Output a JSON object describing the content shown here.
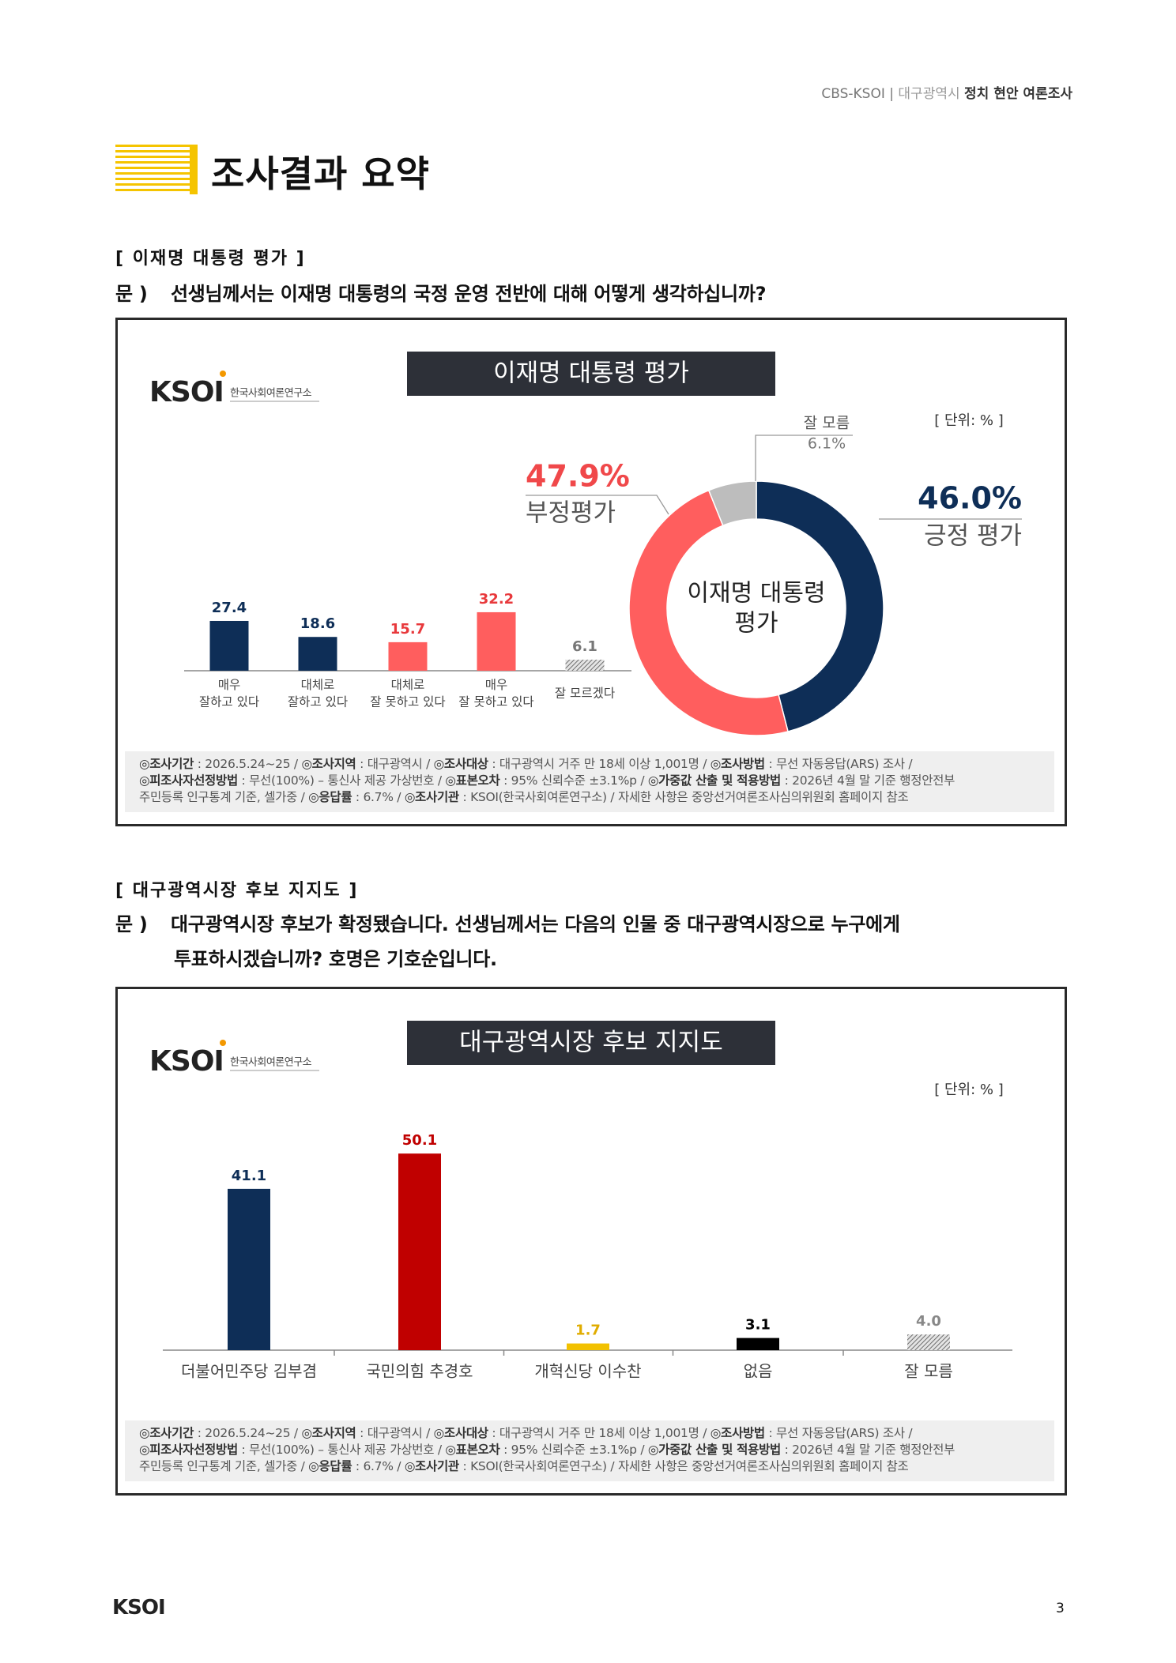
{
  "header": {
    "source": "CBS-KSOI",
    "separator": "|",
    "region": "대구광역시",
    "topic": "정치 현안 여론조사"
  },
  "page_title": "조사결과 요약",
  "logo": {
    "mark": "KSOI",
    "name": "한국사회여론연구소"
  },
  "sections": [
    {
      "label": "[ 이재명 대통령 평가 ]",
      "question_prefix": "문 )",
      "question_lines": [
        "선생님께서는 이재명 대통령의 국정 운영 전반에 대해 어떻게 생각하십니까?"
      ]
    },
    {
      "label": "[ 대구광역시장 후보 지지도 ]",
      "question_prefix": "문 )",
      "question_lines": [
        "대구광역시장 후보가 확정됐습니다. 선생님께서는 다음의 인물 중 대구광역시장으로 누구에게",
        "투표하시겠습니까? 호명은 기호순입니다."
      ]
    }
  ],
  "footnote": [
    [
      {
        "text": "◎조사기간",
        "bold": true
      },
      {
        "text": " : 2026.5.24~25 / ",
        "bold": false
      },
      {
        "text": "◎조사지역",
        "bold": true
      },
      {
        "text": " : 대구광역시 / ",
        "bold": false
      },
      {
        "text": "◎조사대상",
        "bold": true
      },
      {
        "text": " : 대구광역시 거주 만 18세 이상 1,001명 / ",
        "bold": false
      },
      {
        "text": "◎조사방법",
        "bold": true
      },
      {
        "text": " : 무선 자동응답(ARS) 조사 /",
        "bold": false
      }
    ],
    [
      {
        "text": "◎피조사자선정방법",
        "bold": true
      },
      {
        "text": " : 무선(100%) – 통신사 제공 가상번호 / ",
        "bold": false
      },
      {
        "text": "◎표본오차",
        "bold": true
      },
      {
        "text": " : 95% 신뢰수준 ±3.1%p / ",
        "bold": false
      },
      {
        "text": "◎가중값 산출 및 적용방법",
        "bold": true
      },
      {
        "text": " : 2026년 4월 말 기준 행정안전부",
        "bold": false
      }
    ],
    [
      {
        "text": "주민등록 인구통계 기준, 셀가중 / ",
        "bold": false
      },
      {
        "text": "◎응답률",
        "bold": true
      },
      {
        "text": " : 6.7% / ",
        "bold": false
      },
      {
        "text": "◎조사기관",
        "bold": true
      },
      {
        "text": " : KSOI(한국사회여론연구소) / 자세한 사항은 중앙선거여론조사심의위원회 홈페이지 참조",
        "bold": false
      }
    ]
  ],
  "chart_data": [
    {
      "type": "bar",
      "title": "이재명 대통령 평가",
      "unit": "[ 단위: % ]",
      "categories": [
        "매우\n잘하고 있다",
        "대체로\n잘하고 있다",
        "대체로\n잘 못하고 있다",
        "매우\n잘 못하고 있다",
        "잘 모르겠다"
      ],
      "values": [
        27.4,
        18.6,
        15.7,
        32.2,
        6.1
      ],
      "colors": [
        "#0e2e57",
        "#0e2e57",
        "#ff5e5e",
        "#ff5e5e",
        "#9a9a9a"
      ],
      "label_colors": [
        "#0e2e57",
        "#0e2e57",
        "#e8393c",
        "#e8393c",
        "#777777"
      ],
      "hatch": [
        false,
        false,
        false,
        false,
        true
      ],
      "ylim": [
        0,
        40
      ]
    },
    {
      "type": "pie",
      "donut": true,
      "center_label": [
        "이재명 대통령",
        "평가"
      ],
      "categories": [
        "긍정 평가",
        "부정평가",
        "잘 모름"
      ],
      "values": [
        46.0,
        47.9,
        6.1
      ],
      "value_labels": [
        "46.0%",
        "47.9%",
        "6.1%"
      ],
      "colors": [
        "#0e2e57",
        "#ff5e5e",
        "#bdbdbd"
      ],
      "label_colors": [
        "#0e2e57",
        "#f0484a",
        "#777777"
      ]
    },
    {
      "type": "bar",
      "title": "대구광역시장 후보 지지도",
      "unit": "[ 단위: % ]",
      "categories": [
        "더불어민주당 김부겸",
        "국민의힘 추경호",
        "개혁신당 이수찬",
        "없음",
        "잘 모름"
      ],
      "values": [
        41.1,
        50.1,
        1.7,
        3.1,
        4.0
      ],
      "value_labels": [
        "41.1",
        "50.1",
        "1.7",
        "3.1",
        "4.0"
      ],
      "colors": [
        "#0e2e57",
        "#c00000",
        "#f2c100",
        "#000000",
        "#9a9a9a"
      ],
      "label_colors": [
        "#0e2e57",
        "#c00000",
        "#e0ac00",
        "#000000",
        "#888888"
      ],
      "hatch": [
        false,
        false,
        false,
        false,
        true
      ],
      "ylim": [
        0,
        60
      ]
    }
  ],
  "page_number": 3
}
